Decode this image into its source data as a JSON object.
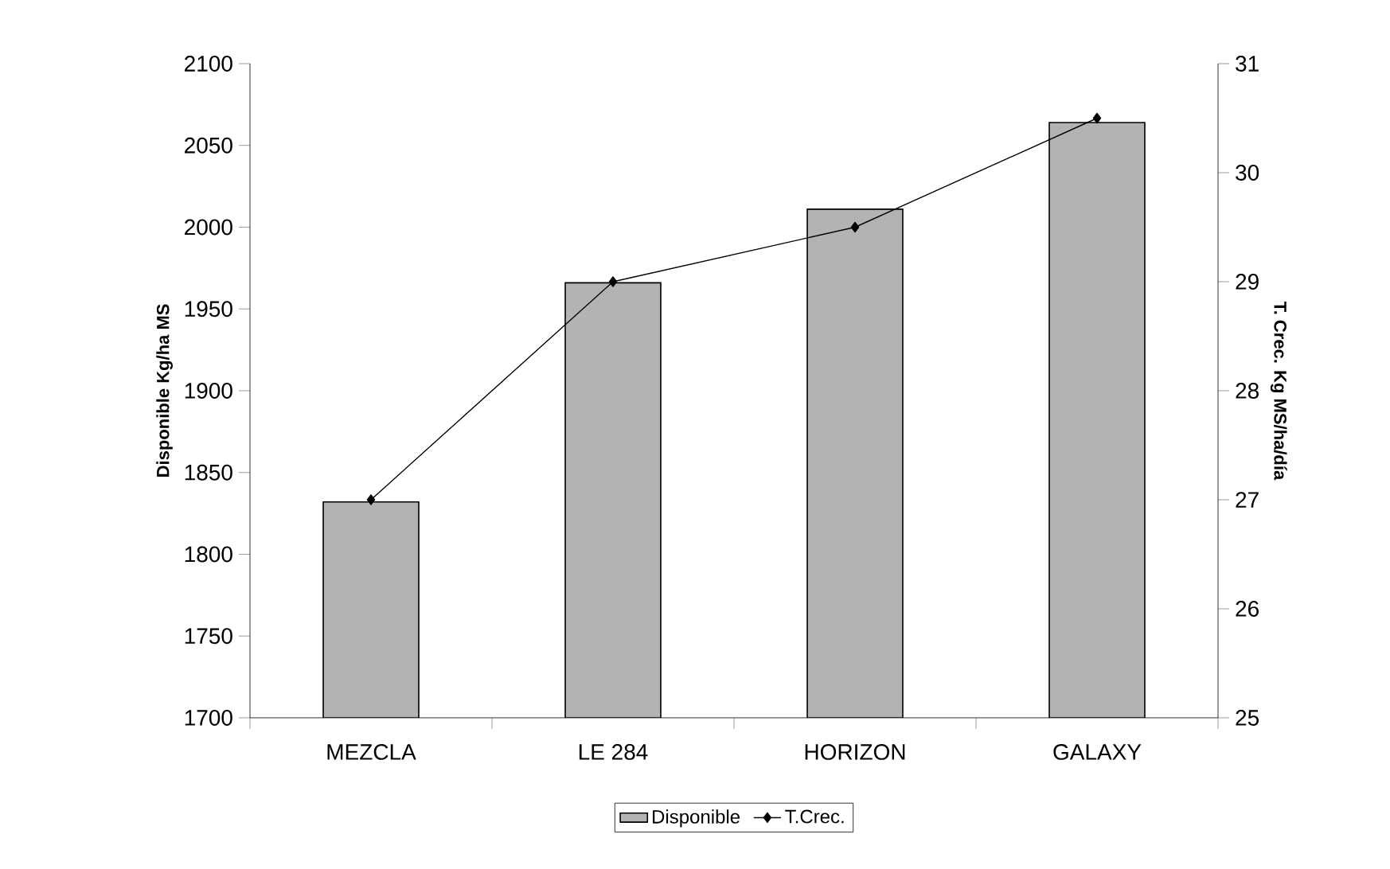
{
  "chart_data": {
    "type": "bar",
    "categories": [
      "MEZCLA",
      "LE 284",
      "HORIZON",
      "GALAXY"
    ],
    "ylabel": "Disponible Kg/ha MS",
    "y2label": "T. Crec. Kg MS/ha/día",
    "ylim": [
      1700,
      2100
    ],
    "yticks": [
      1700,
      1750,
      1800,
      1850,
      1900,
      1950,
      2000,
      2050,
      2100
    ],
    "y2lim": [
      25,
      31
    ],
    "y2ticks": [
      25,
      26,
      27,
      28,
      29,
      30,
      31
    ],
    "legend": "bottom",
    "marker": "diamond",
    "grid": false,
    "series": [
      {
        "name": "Disponible",
        "color": "#b3b3b3",
        "values": [
          1832,
          1966,
          2011,
          2064
        ]
      },
      {
        "name": "T.Crec.",
        "type": "line",
        "axis": "y2",
        "color": "#000000",
        "values": [
          27,
          29,
          29.5,
          30.5
        ]
      }
    ]
  }
}
